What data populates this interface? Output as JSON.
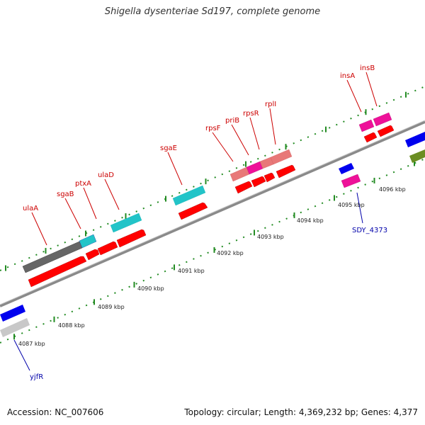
{
  "title": "Shigella dysenteriae Sd197, complete genome",
  "footer": {
    "accession": "Accession: NC_007606",
    "summary": "Topology: circular; Length: 4,369,232 bp; Genes: 4,377"
  },
  "kbp_labels": [
    "4087 kbp",
    "4088 kbp",
    "4089 kbp",
    "4090 kbp",
    "4091 kbp",
    "4092 kbp",
    "4093 kbp",
    "4094 kbp",
    "4095 kbp",
    "4096 kbp"
  ],
  "gene_labels_top": [
    "ulaA",
    "sgaB",
    "ptxA",
    "ulaD",
    "sgaE",
    "rpsF",
    "priB",
    "rpsR",
    "rplI",
    "insA",
    "insB"
  ],
  "gene_labels_bottom": [
    "SDY_4373",
    "yjfR"
  ],
  "colors": {
    "gene_label_top": "#cc0000",
    "gene_label_bottom": "#0000aa",
    "cds_red": "#ff0000",
    "cyan": "#22c4c8",
    "magenta": "#ee1199",
    "pink": "#e87878",
    "blue": "#0000ee",
    "olive": "#6b8e23",
    "dark_gray": "#666666",
    "light_gray": "#c8c8c8",
    "tick_green": "#228b22"
  }
}
